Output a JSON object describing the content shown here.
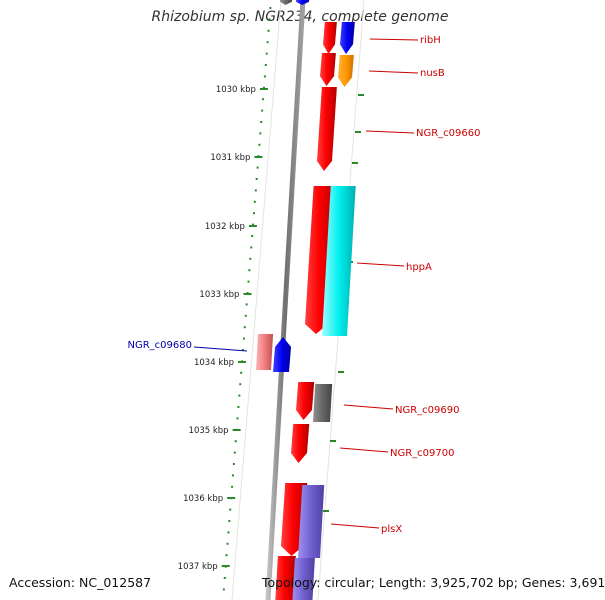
{
  "title": "Rhizobium sp. NGR234, complete genome",
  "footer": {
    "accession": "Accession: NC_012587",
    "topology": "Topology: circular; Length: 3,925,702 bp; Genes: 3,691"
  },
  "colors": {
    "backbone": "#808080",
    "ruler": "#2a8a2a",
    "label_red": "#cc0000",
    "label_blue": "#0000aa"
  },
  "ruler_ticks": [
    "1030 kbp",
    "1031 kbp",
    "1032 kbp",
    "1033 kbp",
    "1034 kbp",
    "1035 kbp",
    "1036 kbp",
    "1037 kbp"
  ],
  "genes": [
    {
      "label": "ribH",
      "label_color": "#cc0000"
    },
    {
      "label": "nusB",
      "label_color": "#cc0000"
    },
    {
      "label": "NGR_c09660",
      "label_color": "#cc0000"
    },
    {
      "label": "hppA",
      "label_color": "#cc0000"
    },
    {
      "label": "NGR_c09680",
      "label_color": "#0000aa"
    },
    {
      "label": "NGR_c09690",
      "label_color": "#cc0000"
    },
    {
      "label": "NGR_c09700",
      "label_color": "#cc0000"
    },
    {
      "label": "plsX",
      "label_color": "#cc0000"
    }
  ]
}
